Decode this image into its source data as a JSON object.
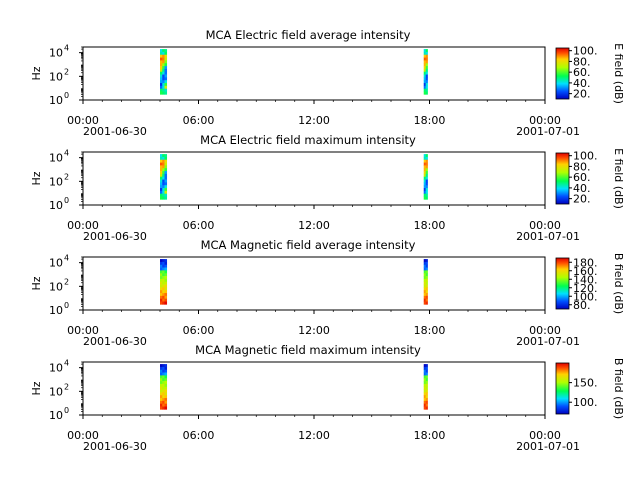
{
  "chart_data": [
    {
      "type": "heatmap",
      "title": "MCA  Electric field average intensity",
      "ylabel": "Hz",
      "y_scale": "log",
      "y_tick_labels": [
        {
          "base": "10",
          "exp": "0"
        },
        {
          "base": "10",
          "exp": "2"
        },
        {
          "base": "10",
          "exp": "4"
        }
      ],
      "x_tick_labels": [
        "00:00",
        "06:00",
        "12:00",
        "18:00",
        "00:00"
      ],
      "x_date_labels": [
        "2001-06-30",
        "2001-07-01"
      ],
      "xlim": [
        "2001-06-30 00:00",
        "2001-07-01 00:00"
      ],
      "ylim": [
        1,
        30000
      ],
      "colorbar": {
        "label": "E field (dB)",
        "range": [
          10,
          105
        ],
        "ticks": [
          "20.",
          "40.",
          "60.",
          "80.",
          "100."
        ],
        "tick_values": [
          20,
          40,
          60,
          80,
          100
        ]
      },
      "data_intervals": [
        {
          "start_hour": 4.0,
          "end_hour": 4.35,
          "band": "low"
        },
        {
          "start_hour": 17.7,
          "end_hour": 17.9,
          "band": "low"
        }
      ]
    },
    {
      "type": "heatmap",
      "title": "MCA  Electric field maximum intensity",
      "ylabel": "Hz",
      "y_scale": "log",
      "y_tick_labels": [
        {
          "base": "10",
          "exp": "0"
        },
        {
          "base": "10",
          "exp": "2"
        },
        {
          "base": "10",
          "exp": "4"
        }
      ],
      "x_tick_labels": [
        "00:00",
        "06:00",
        "12:00",
        "18:00",
        "00:00"
      ],
      "x_date_labels": [
        "2001-06-30",
        "2001-07-01"
      ],
      "xlim": [
        "2001-06-30 00:00",
        "2001-07-01 00:00"
      ],
      "ylim": [
        1,
        30000
      ],
      "colorbar": {
        "label": "E field (dB)",
        "range": [
          10,
          105
        ],
        "ticks": [
          "20.",
          "40.",
          "60.",
          "80.",
          "100."
        ],
        "tick_values": [
          20,
          40,
          60,
          80,
          100
        ]
      },
      "data_intervals": [
        {
          "start_hour": 4.0,
          "end_hour": 4.35,
          "band": "low"
        },
        {
          "start_hour": 17.7,
          "end_hour": 17.9,
          "band": "low"
        }
      ]
    },
    {
      "type": "heatmap",
      "title": "MCA  Magnetic field average intensity",
      "ylabel": "Hz",
      "y_scale": "log",
      "y_tick_labels": [
        {
          "base": "10",
          "exp": "0"
        },
        {
          "base": "10",
          "exp": "2"
        },
        {
          "base": "10",
          "exp": "4"
        }
      ],
      "x_tick_labels": [
        "00:00",
        "06:00",
        "12:00",
        "18:00",
        "00:00"
      ],
      "x_date_labels": [
        "2001-06-30",
        "2001-07-01"
      ],
      "xlim": [
        "2001-06-30 00:00",
        "2001-07-01 00:00"
      ],
      "ylim": [
        1,
        30000
      ],
      "colorbar": {
        "label": "B field (dB)",
        "range": [
          70,
          190
        ],
        "ticks": [
          "80.",
          "100.",
          "120.",
          "140.",
          "160.",
          "180."
        ],
        "tick_values": [
          80,
          100,
          120,
          140,
          160,
          180
        ]
      },
      "data_intervals": [
        {
          "start_hour": 4.0,
          "end_hour": 4.35,
          "band": "mag"
        },
        {
          "start_hour": 17.7,
          "end_hour": 17.9,
          "band": "mag"
        }
      ]
    },
    {
      "type": "heatmap",
      "title": "MCA  Magnetic field maximum intensity",
      "ylabel": "Hz",
      "y_scale": "log",
      "y_tick_labels": [
        {
          "base": "10",
          "exp": "0"
        },
        {
          "base": "10",
          "exp": "2"
        },
        {
          "base": "10",
          "exp": "4"
        }
      ],
      "x_tick_labels": [
        "00:00",
        "06:00",
        "12:00",
        "18:00",
        "00:00"
      ],
      "x_date_labels": [
        "2001-06-30",
        "2001-07-01"
      ],
      "xlim": [
        "2001-06-30 00:00",
        "2001-07-01 00:00"
      ],
      "ylim": [
        1,
        30000
      ],
      "colorbar": {
        "label": "B field (dB)",
        "range": [
          70,
          200
        ],
        "ticks": [
          "100.",
          "150."
        ],
        "tick_values": [
          100,
          150
        ]
      },
      "data_intervals": [
        {
          "start_hour": 4.0,
          "end_hour": 4.35,
          "band": "mag"
        },
        {
          "start_hour": 17.7,
          "end_hour": 17.9,
          "band": "mag"
        }
      ]
    }
  ]
}
